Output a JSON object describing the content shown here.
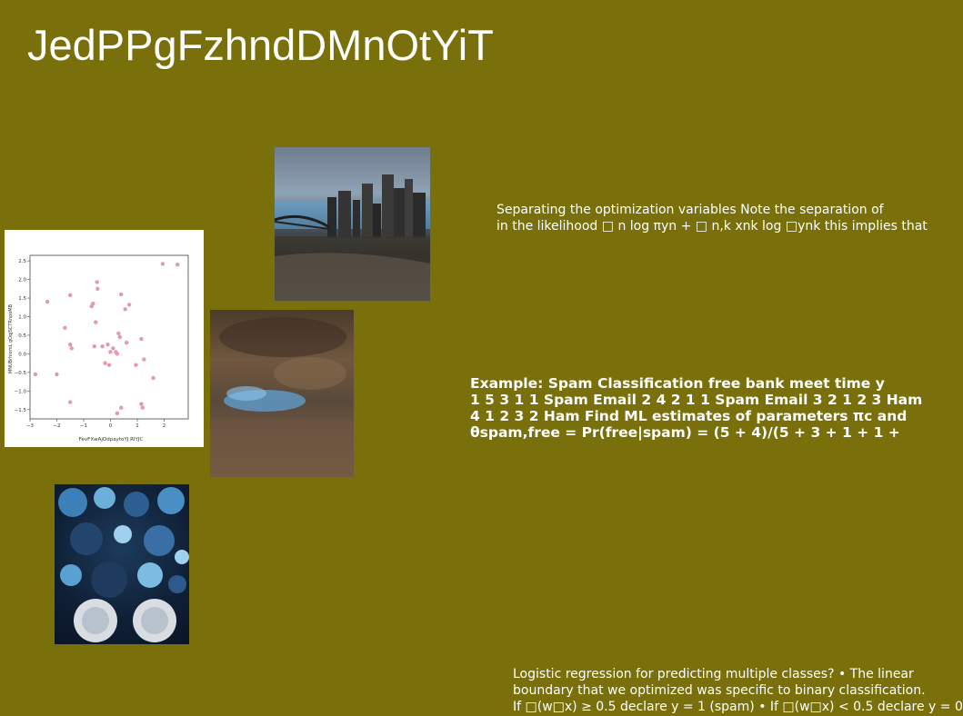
{
  "title": "JedPPgFzhndDMnOtYiT",
  "text_blocks": [
    {
      "lines": [
        "Separating the optimization variables Note the separation of",
        "in the likelihood □ n log πyn + □ n,k xnk log □ynk this implies that"
      ]
    },
    {
      "lines": [
        "Example: Spam Classification free bank meet time y",
        "1 5 3 1 1 Spam Email 2 4 2 1 1 Spam Email 3 2 1 2 3 Ham",
        "4 1 2 3 2 Ham Find ML estimates of parameters πc and",
        "θspam,free = Pr(free|spam) = (5 + 4)/(5 + 3 + 1 + 1 +"
      ]
    },
    {
      "lines": [
        "Logistic regression for predicting multiple classes? • The linear",
        "boundary that we optimized was specific to binary classification.",
        "If □(w□x) ≥ 0.5 declare y = 1 (spam) • If □(w□x) < 0.5 declare y = 0"
      ]
    }
  ],
  "chart_data": {
    "type": "scatter",
    "xlabel": "FevFXwAjOdpaytoYJ RIYJC",
    "ylabel": "MNUBrhiomL gOqJSCTRnpoMB",
    "xlim": [
      -3,
      2.9
    ],
    "ylim": [
      -1.75,
      2.65
    ],
    "xticks": [
      -3,
      -2,
      -1,
      0,
      1,
      2
    ],
    "yticks": [
      -1.5,
      -1.0,
      -0.5,
      0.0,
      0.5,
      1.0,
      1.5,
      2.0,
      2.5
    ],
    "point_color": "#e49aa9",
    "points": [
      [
        2.5,
        2.4
      ],
      [
        1.95,
        2.42
      ],
      [
        -0.5,
        1.93
      ],
      [
        -0.48,
        1.75
      ],
      [
        0.4,
        1.6
      ],
      [
        -1.5,
        1.58
      ],
      [
        -2.35,
        1.4
      ],
      [
        -0.65,
        1.35
      ],
      [
        -0.7,
        1.28
      ],
      [
        0.7,
        1.32
      ],
      [
        0.55,
        1.2
      ],
      [
        -0.55,
        0.85
      ],
      [
        -1.7,
        0.7
      ],
      [
        0.3,
        0.55
      ],
      [
        0.35,
        0.45
      ],
      [
        1.15,
        0.4
      ],
      [
        0.6,
        0.3
      ],
      [
        -1.5,
        0.25
      ],
      [
        -1.45,
        0.15
      ],
      [
        -0.6,
        0.2
      ],
      [
        -0.3,
        0.2
      ],
      [
        -0.1,
        0.25
      ],
      [
        0.1,
        0.15
      ],
      [
        0.2,
        0.05
      ],
      [
        0.25,
        0.0
      ],
      [
        0.0,
        0.05
      ],
      [
        0.95,
        -0.3
      ],
      [
        1.25,
        -0.15
      ],
      [
        -0.2,
        -0.25
      ],
      [
        -0.05,
        -0.3
      ],
      [
        -2.8,
        -0.55
      ],
      [
        -2.0,
        -0.55
      ],
      [
        1.6,
        -0.65
      ],
      [
        -1.5,
        -1.3
      ],
      [
        1.15,
        -1.35
      ],
      [
        1.2,
        -1.45
      ],
      [
        0.4,
        -1.45
      ],
      [
        0.25,
        -1.6
      ]
    ]
  }
}
